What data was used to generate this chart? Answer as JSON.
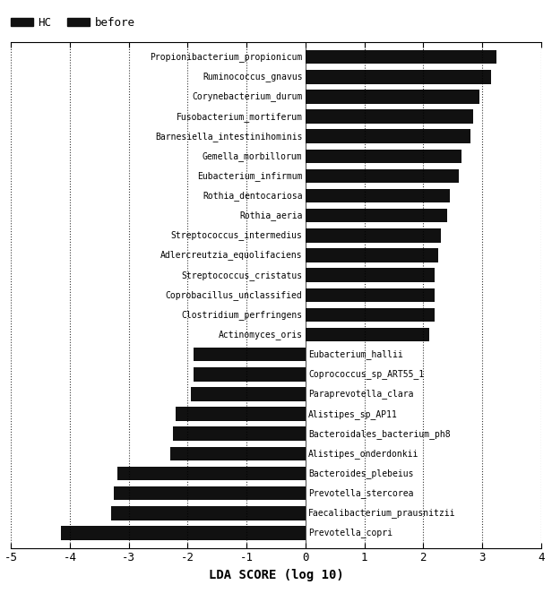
{
  "title": "",
  "xlabel": "LDA SCORE (log 10)",
  "xlim": [
    -5,
    4
  ],
  "xticks": [
    -5,
    -4,
    -3,
    -2,
    -1,
    0,
    1,
    2,
    3,
    4
  ],
  "background_color": "#ffffff",
  "bar_color": "#111111",
  "legend": [
    {
      "label": "HC",
      "color": "#111111"
    },
    {
      "label": "before",
      "color": "#111111"
    }
  ],
  "categories": [
    "Propionibacterium_propionicum",
    "Ruminococcus_gnavus",
    "Corynebacterium_durum",
    "Fusobacterium_mortiferum",
    "Barnesiella_intestinihominis",
    "Gemella_morbillorum",
    "Eubacterium_infirmum",
    "Rothia_dentocariosa",
    "Rothia_aeria",
    "Streptococcus_intermedius",
    "Adlercreutzia_equolifaciens",
    "Streptococcus_cristatus",
    "Coprobacillus_unclassified",
    "Clostridium_perfringens",
    "Actinomyces_oris",
    "Eubacterium_hallii",
    "Coprococcus_sp_ART55_1",
    "Paraprevotella_clara",
    "Alistipes_sp_AP11",
    "Bacteroidales_bacterium_ph8",
    "Alistipes_onderdonkii",
    "Bacteroides_plebeius",
    "Prevotella_stercorea",
    "Faecalibacterium_prausnitzii",
    "Prevotella_copri"
  ],
  "values": [
    3.25,
    3.15,
    2.95,
    2.85,
    2.8,
    2.65,
    2.6,
    2.45,
    2.4,
    2.3,
    2.25,
    2.2,
    2.2,
    2.2,
    2.1,
    -1.9,
    -1.9,
    -1.95,
    -2.2,
    -2.25,
    -2.3,
    -3.2,
    -3.25,
    -3.3,
    -4.15
  ],
  "label_fontsize": 7.0,
  "xlabel_fontsize": 10,
  "xtick_fontsize": 9,
  "legend_fontsize": 9,
  "bar_height": 0.7
}
